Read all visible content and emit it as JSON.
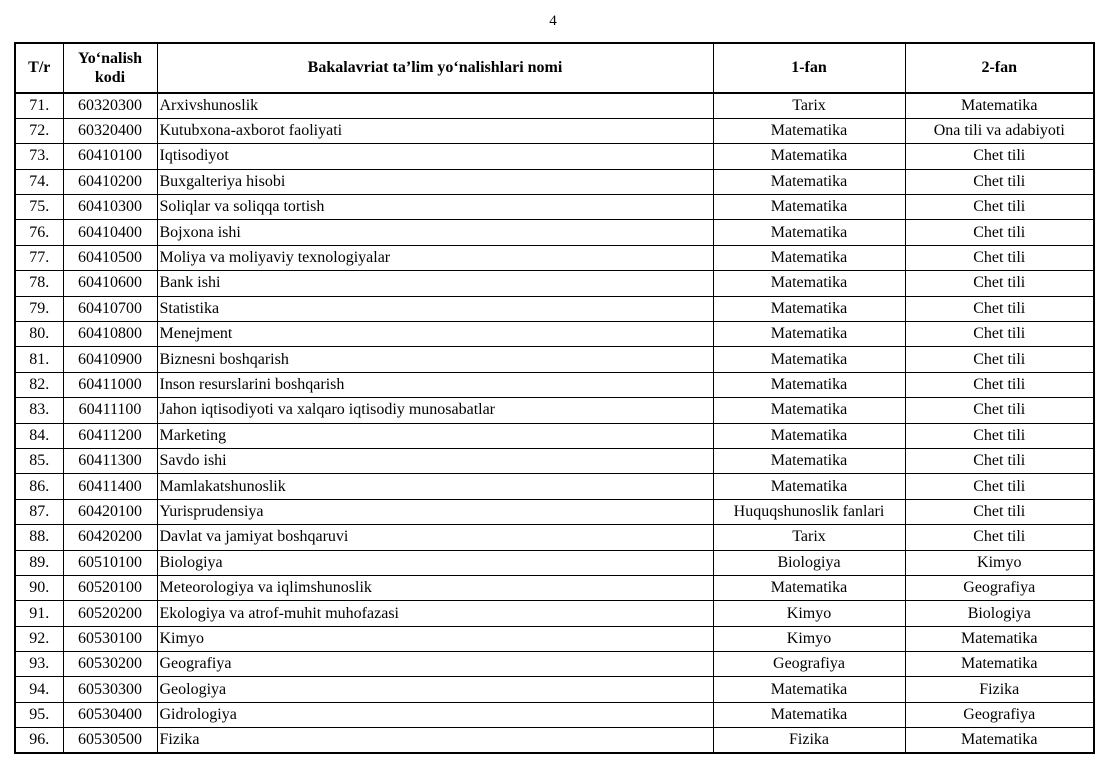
{
  "page": {
    "number": "4"
  },
  "colors": {
    "text": "#000000",
    "background": "#ffffff",
    "border": "#000000"
  },
  "table": {
    "headers": {
      "num": "T/r",
      "code": "Yo‘nalish kodi",
      "name": "Bakalavriat ta’lim yo‘nalishlari nomi",
      "fan1": "1-fan",
      "fan2": "2-fan"
    },
    "rows": [
      {
        "num": "71.",
        "code": "60320300",
        "name": "Arxivshunoslik",
        "fan1": "Tarix",
        "fan2": "Matematika"
      },
      {
        "num": "72.",
        "code": "60320400",
        "name": "Kutubxona-axborot faoliyati",
        "fan1": "Matematika",
        "fan2": "Ona tili va adabiyoti"
      },
      {
        "num": "73.",
        "code": "60410100",
        "name": "Iqtisodiyot",
        "fan1": "Matematika",
        "fan2": "Chet tili"
      },
      {
        "num": "74.",
        "code": "60410200",
        "name": "Buxgalteriya hisobi",
        "fan1": "Matematika",
        "fan2": "Chet tili"
      },
      {
        "num": "75.",
        "code": "60410300",
        "name": "Soliqlar va soliqqa tortish",
        "fan1": "Matematika",
        "fan2": "Chet tili"
      },
      {
        "num": "76.",
        "code": "60410400",
        "name": "Bojxona ishi",
        "fan1": "Matematika",
        "fan2": "Chet tili"
      },
      {
        "num": "77.",
        "code": "60410500",
        "name": "Moliya va moliyaviy texnologiyalar",
        "fan1": "Matematika",
        "fan2": "Chet tili"
      },
      {
        "num": "78.",
        "code": "60410600",
        "name": "Bank ishi",
        "fan1": "Matematika",
        "fan2": "Chet tili"
      },
      {
        "num": "79.",
        "code": "60410700",
        "name": "Statistika",
        "fan1": "Matematika",
        "fan2": "Chet tili"
      },
      {
        "num": "80.",
        "code": "60410800",
        "name": "Menejment",
        "fan1": "Matematika",
        "fan2": "Chet tili"
      },
      {
        "num": "81.",
        "code": "60410900",
        "name": "Biznesni boshqarish",
        "fan1": "Matematika",
        "fan2": "Chet tili"
      },
      {
        "num": "82.",
        "code": "60411000",
        "name": "Inson resurslarini boshqarish",
        "fan1": "Matematika",
        "fan2": "Chet tili"
      },
      {
        "num": "83.",
        "code": "60411100",
        "name": "Jahon iqtisodiyoti va xalqaro iqtisodiy munosabatlar",
        "fan1": "Matematika",
        "fan2": "Chet tili"
      },
      {
        "num": "84.",
        "code": "60411200",
        "name": "Marketing",
        "fan1": "Matematika",
        "fan2": "Chet tili"
      },
      {
        "num": "85.",
        "code": "60411300",
        "name": "Savdo ishi",
        "fan1": "Matematika",
        "fan2": "Chet tili"
      },
      {
        "num": "86.",
        "code": "60411400",
        "name": "Mamlakatshunoslik",
        "fan1": "Matematika",
        "fan2": "Chet tili"
      },
      {
        "num": "87.",
        "code": "60420100",
        "name": "Yurisprudensiya",
        "fan1": "Huquqshunoslik fanlari",
        "fan2": "Chet tili"
      },
      {
        "num": "88.",
        "code": "60420200",
        "name": "Davlat va jamiyat boshqaruvi",
        "fan1": "Tarix",
        "fan2": "Chet tili"
      },
      {
        "num": "89.",
        "code": "60510100",
        "name": "Biologiya",
        "fan1": "Biologiya",
        "fan2": "Kimyo"
      },
      {
        "num": "90.",
        "code": "60520100",
        "name": "Meteorologiya va iqlimshunoslik",
        "fan1": "Matematika",
        "fan2": "Geografiya"
      },
      {
        "num": "91.",
        "code": "60520200",
        "name": "Ekologiya va atrof-muhit muhofazasi",
        "fan1": "Kimyo",
        "fan2": "Biologiya"
      },
      {
        "num": "92.",
        "code": "60530100",
        "name": "Kimyo",
        "fan1": "Kimyo",
        "fan2": "Matematika"
      },
      {
        "num": "93.",
        "code": "60530200",
        "name": "Geografiya",
        "fan1": "Geografiya",
        "fan2": "Matematika"
      },
      {
        "num": "94.",
        "code": "60530300",
        "name": "Geologiya",
        "fan1": "Matematika",
        "fan2": "Fizika"
      },
      {
        "num": "95.",
        "code": "60530400",
        "name": "Gidrologiya",
        "fan1": "Matematika",
        "fan2": "Geografiya"
      },
      {
        "num": "96.",
        "code": "60530500",
        "name": "Fizika",
        "fan1": "Fizika",
        "fan2": "Matematika"
      }
    ]
  }
}
